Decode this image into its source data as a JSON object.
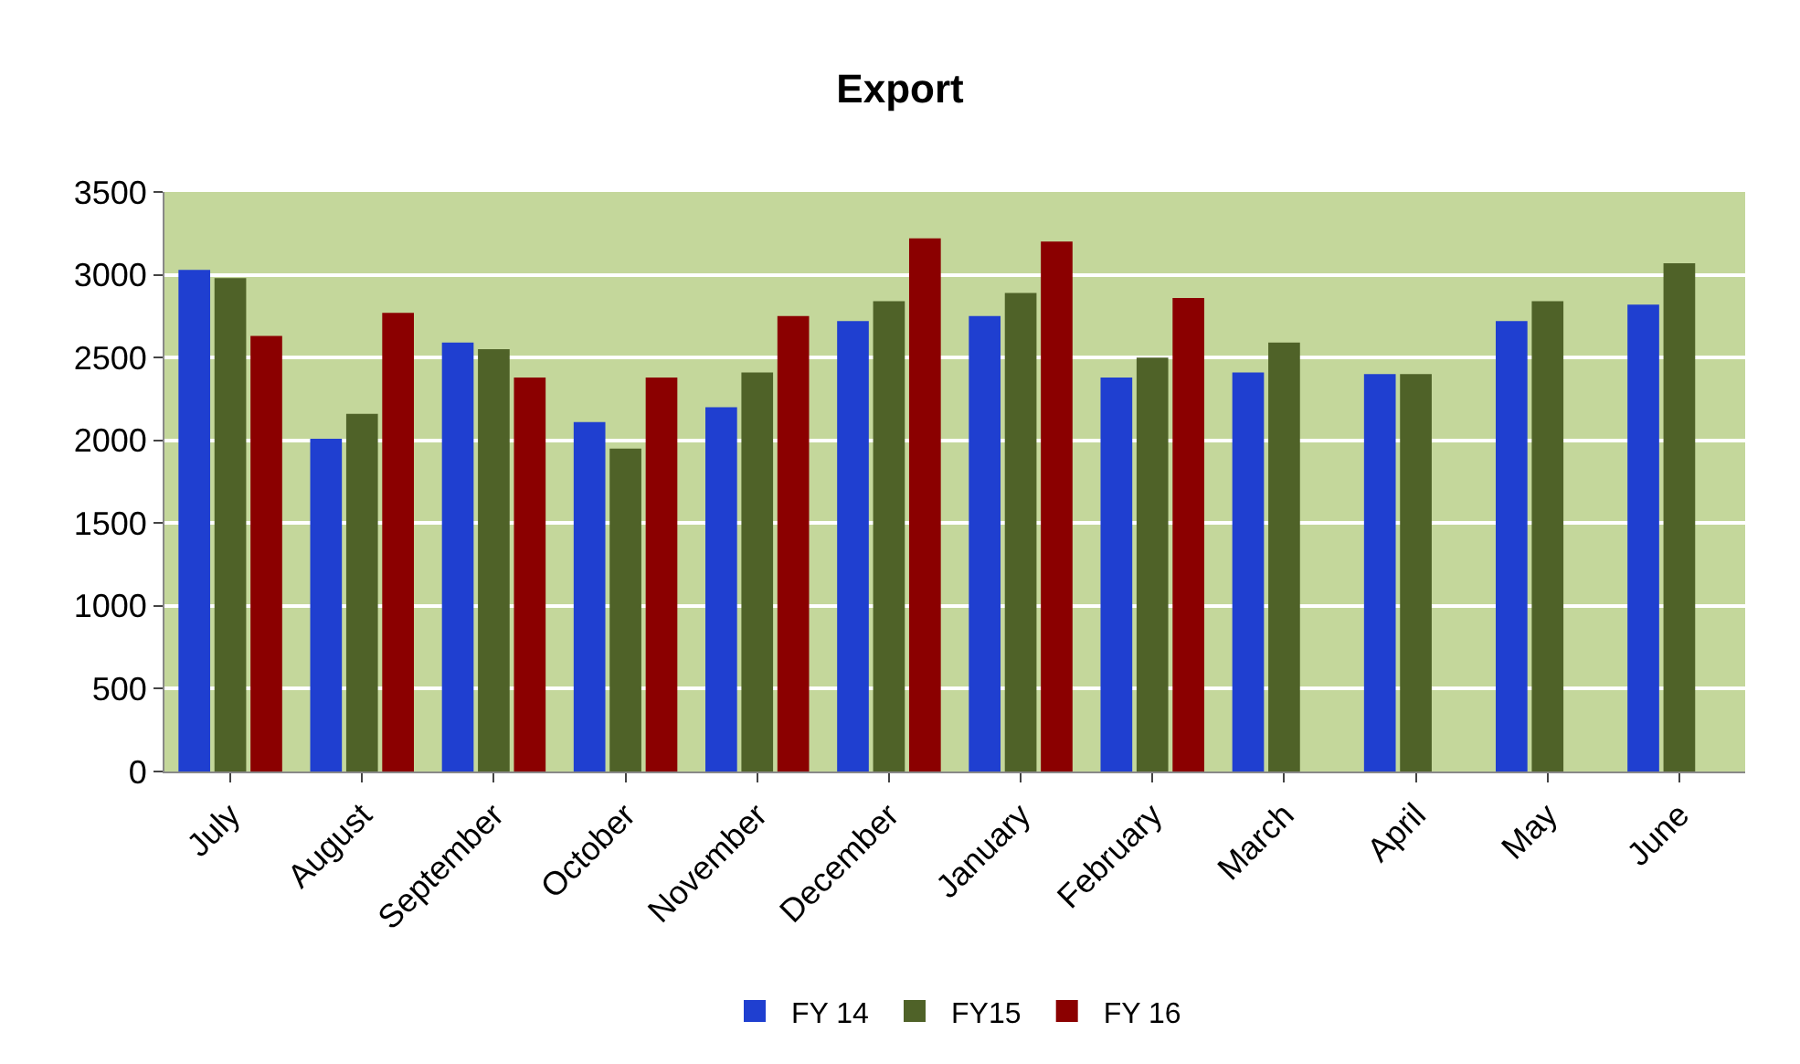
{
  "chart_data": {
    "type": "bar",
    "title": "Export",
    "categories": [
      "July",
      "August",
      "September",
      "October",
      "November",
      "December",
      "January",
      "February",
      "March",
      "April",
      "May",
      "June"
    ],
    "series": [
      {
        "name": "FY 14",
        "color": "#1f3fd0",
        "values": [
          3030,
          2010,
          2590,
          2110,
          2200,
          2720,
          2750,
          2380,
          2410,
          2400,
          2720,
          2820
        ]
      },
      {
        "name": "FY15",
        "color": "#4f6228",
        "values": [
          2980,
          2160,
          2550,
          1950,
          2410,
          2840,
          2890,
          2500,
          2590,
          2400,
          2840,
          3070
        ]
      },
      {
        "name": "FY 16",
        "color": "#8b0000",
        "values": [
          2630,
          2770,
          2380,
          2380,
          2750,
          3220,
          3200,
          2860,
          null,
          null,
          null,
          null
        ]
      }
    ],
    "ylim": [
      0,
      3500
    ],
    "yticks": [
      0,
      500,
      1000,
      1500,
      2000,
      2500,
      3000,
      3500
    ],
    "grid": "y",
    "legend": "bottom"
  }
}
